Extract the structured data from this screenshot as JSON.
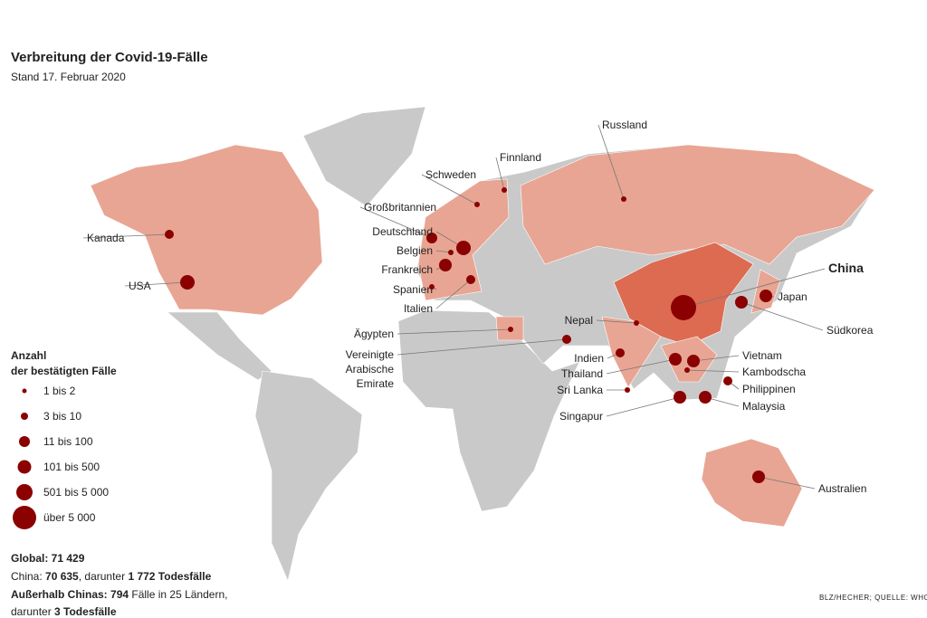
{
  "header": {
    "title": "Verbreitung der Covid-19-Fälle",
    "subtitle": "Stand 17. Februar 2020"
  },
  "legend": {
    "title": [
      "Anzahl",
      "der bestätigten Fälle"
    ],
    "items": [
      "1 bis 2",
      "3 bis 10",
      "11 bis 100",
      "101 bis 500",
      "501 bis 5 000",
      "über 5 000"
    ]
  },
  "countries": [
    "Kanada",
    "USA",
    "Großbritannien",
    "Deutschland",
    "Belgien",
    "Frankreich",
    "Spanien",
    "Italien",
    "Schweden",
    "Finnland",
    "Russland",
    "China",
    "Japan",
    "Südkorea",
    "Nepal",
    "Ägypten",
    [
      "Vereinigte",
      "Arabische",
      "Emirate"
    ],
    "Indien",
    "Thailand",
    "Sri Lanka",
    "Singapur",
    "Vietnam",
    "Kambodscha",
    "Philippinen",
    "Malaysia",
    "Australien"
  ],
  "summary": {
    "global": "Global: 71 429",
    "china": [
      "China: ",
      "70 635",
      ", darunter ",
      "1 772 Todesfälle"
    ],
    "outside": [
      "Außerhalb Chinas: ",
      "794",
      " Fälle in 25 Ländern,"
    ],
    "outside_deaths": [
      "darunter ",
      "3 Todesfälle"
    ]
  },
  "source": "BLZ/HECHER; QUELLE: WHO"
}
